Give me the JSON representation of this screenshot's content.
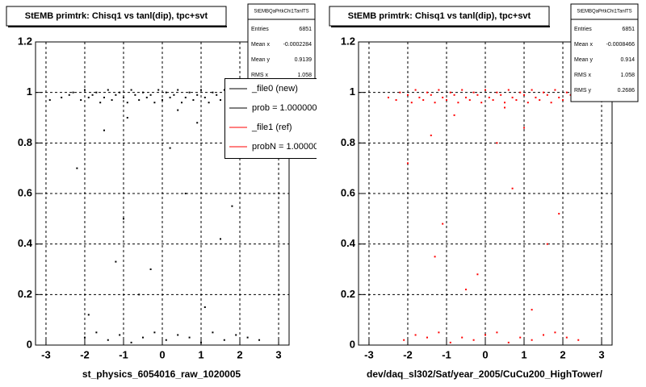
{
  "chart_data": [
    {
      "type": "scatter",
      "title": "StEMB primtrk: Chisq1 vs tanl(dip), tpc+svt",
      "color": "#000000",
      "xlim": [
        -3.27,
        3.27
      ],
      "ylim": [
        0,
        1.2
      ],
      "xticks": [
        -3,
        -2,
        -1,
        0,
        1,
        2,
        3
      ],
      "yticks": [
        0,
        0.2,
        0.4,
        0.6,
        0.8,
        1,
        1.2
      ],
      "grid": true,
      "x": [
        -2.9,
        -2.6,
        -2.4,
        -2.3,
        -2.1,
        -2.0,
        -1.9,
        -1.8,
        -1.7,
        -1.6,
        -1.5,
        -1.4,
        -1.3,
        -1.2,
        -1.1,
        -1.0,
        -0.9,
        -0.8,
        -0.7,
        -0.6,
        -0.5,
        -0.4,
        -0.3,
        -0.2,
        -0.1,
        0.0,
        0.1,
        0.2,
        0.3,
        0.4,
        0.5,
        0.6,
        0.7,
        0.8,
        0.9,
        1.0,
        1.1,
        1.2,
        1.3,
        1.4,
        1.5,
        1.6,
        1.7,
        1.8,
        1.9,
        2.0,
        2.1,
        2.2,
        2.4,
        2.6,
        -2.0,
        -1.7,
        -1.4,
        -1.1,
        -0.8,
        -0.5,
        -0.2,
        0.1,
        0.4,
        0.7,
        1.0,
        1.3,
        1.6,
        1.9,
        2.2,
        2.5,
        -2.2,
        -1.5,
        -0.9,
        -1.0,
        -0.3,
        0.2,
        0.6,
        1.1,
        1.5,
        -0.6,
        0.9,
        -1.2,
        1.8,
        0.4,
        -1.9
      ],
      "y": [
        0.97,
        0.98,
        0.99,
        1.0,
        0.97,
        1.01,
        0.98,
        0.99,
        1.0,
        0.96,
        0.98,
        1.01,
        0.97,
        0.99,
        1.0,
        0.98,
        0.96,
        1.01,
        0.99,
        0.97,
        1.0,
        0.98,
        0.99,
        0.96,
        1.01,
        0.97,
        1.0,
        0.98,
        0.99,
        1.01,
        0.96,
        0.98,
        1.0,
        0.97,
        0.99,
        1.01,
        0.98,
        0.96,
        1.0,
        0.99,
        0.97,
        1.01,
        0.98,
        0.96,
        1.0,
        0.99,
        0.97,
        0.98,
        0.99,
        0.97,
        0.03,
        0.05,
        0.02,
        0.04,
        0.01,
        0.03,
        0.05,
        0.02,
        0.04,
        0.03,
        0.01,
        0.05,
        0.02,
        0.04,
        0.03,
        0.02,
        0.7,
        0.85,
        0.9,
        0.5,
        0.3,
        0.78,
        0.6,
        0.15,
        0.42,
        0.2,
        0.88,
        0.33,
        0.55,
        0.93,
        0.12
      ],
      "x_axis_label": "st_physics_6054016_raw_1020005",
      "stats": {
        "title": "StEMBQaPrtkChi1TanlTS",
        "rows": [
          {
            "label": "Entries",
            "value": "6851"
          },
          {
            "label": "Mean x",
            "value": "-0.0002284"
          },
          {
            "label": "Mean y",
            "value": "0.9139"
          },
          {
            "label": "RMS x",
            "value": "1.058"
          }
        ]
      },
      "legend": [
        {
          "label": "_file0 (new)",
          "color": "#000000"
        },
        {
          "label": "prob = 1.000000",
          "color": "#000000"
        },
        {
          "label": "_file1 (ref)",
          "color": "#ff0000"
        },
        {
          "label": "probN = 1.00000",
          "color": "#ff0000"
        }
      ]
    },
    {
      "type": "scatter",
      "title": "StEMB primtrk: Chisq1 vs tanl(dip), tpc+svt",
      "color": "#ff0000",
      "xlim": [
        -3.27,
        3.27
      ],
      "ylim": [
        0,
        1.2
      ],
      "xticks": [
        -3,
        -2,
        -1,
        0,
        1,
        2,
        3
      ],
      "yticks": [
        0,
        0.2,
        0.4,
        0.6,
        0.8,
        1,
        1.2
      ],
      "grid": true,
      "x": [
        -2.5,
        -2.3,
        -2.2,
        -2.0,
        -1.9,
        -1.8,
        -1.7,
        -1.6,
        -1.5,
        -1.4,
        -1.3,
        -1.2,
        -1.1,
        -1.0,
        -0.9,
        -0.8,
        -0.7,
        -0.6,
        -0.5,
        -0.4,
        -0.3,
        -0.2,
        -0.1,
        0.0,
        0.1,
        0.2,
        0.3,
        0.4,
        0.5,
        0.6,
        0.7,
        0.8,
        0.9,
        1.0,
        1.1,
        1.2,
        1.3,
        1.4,
        1.5,
        1.6,
        1.7,
        1.8,
        1.9,
        2.0,
        2.1,
        2.2,
        2.3,
        2.5,
        -2.1,
        -1.8,
        -1.5,
        -1.2,
        -0.9,
        -0.6,
        -0.3,
        0.0,
        0.3,
        0.6,
        0.9,
        1.2,
        1.5,
        1.8,
        2.1,
        2.4,
        -2.0,
        -1.4,
        -0.8,
        -1.1,
        -0.2,
        0.3,
        0.7,
        1.2,
        1.6,
        -0.5,
        1.0,
        -1.3,
        1.9,
        0.5
      ],
      "y": [
        0.98,
        0.97,
        1.0,
        0.99,
        0.96,
        1.01,
        0.98,
        0.97,
        1.0,
        0.99,
        0.96,
        1.01,
        0.98,
        0.97,
        1.0,
        0.99,
        0.96,
        1.01,
        0.98,
        0.97,
        1.0,
        0.99,
        0.96,
        1.01,
        0.98,
        0.97,
        1.0,
        0.99,
        0.96,
        1.01,
        0.98,
        0.97,
        1.0,
        0.99,
        0.96,
        1.01,
        0.98,
        0.97,
        1.0,
        0.99,
        0.96,
        1.01,
        0.98,
        0.97,
        1.0,
        0.99,
        0.98,
        0.97,
        0.02,
        0.04,
        0.03,
        0.05,
        0.01,
        0.03,
        0.02,
        0.04,
        0.05,
        0.01,
        0.03,
        0.02,
        0.04,
        0.05,
        0.03,
        0.02,
        0.72,
        0.83,
        0.91,
        0.48,
        0.28,
        0.8,
        0.62,
        0.14,
        0.4,
        0.22,
        0.86,
        0.35,
        0.52,
        0.94
      ],
      "x_axis_label": "dev/daq_sl302/Sat/year_2005/CuCu200_HighTower/",
      "stats": {
        "title": "StEMBQaPrtkChi1TanlTS",
        "rows": [
          {
            "label": "Entries",
            "value": "6851"
          },
          {
            "label": "Mean x",
            "value": "-0.0008466"
          },
          {
            "label": "Mean y",
            "value": "0.914"
          },
          {
            "label": "RMS x",
            "value": "1.058"
          },
          {
            "label": "RMS y",
            "value": "0.2686"
          }
        ]
      }
    }
  ]
}
